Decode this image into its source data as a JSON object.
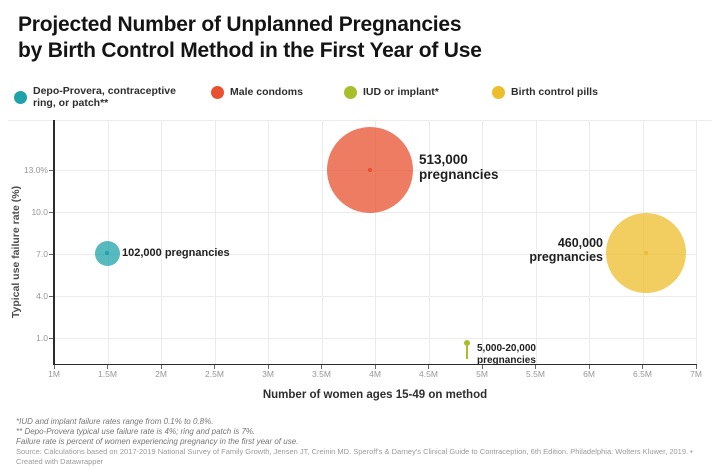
{
  "title": {
    "line1": "Projected Number of Unplanned Pregnancies",
    "line2": "by Birth Control Method in the First Year of Use"
  },
  "legend": {
    "items": [
      {
        "label_line1": "Depo-Provera, contraceptive",
        "label_line2": "ring, or patch**",
        "color": "#1FA3A9"
      },
      {
        "label_line1": "Male condoms",
        "label_line2": "",
        "color": "#E8502F"
      },
      {
        "label_line1": "IUD or implant*",
        "label_line2": "",
        "color": "#A9BE2B"
      },
      {
        "label_line1": "Birth control pills",
        "label_line2": "",
        "color": "#EDBE2C"
      }
    ]
  },
  "chart": {
    "y_axis_label": "Typical use failure rate (%)",
    "x_axis_label": "Number of women ages 15-49 on method",
    "y_ticks": [
      "13.0%",
      "10.0",
      "7.0",
      "4.0",
      "1.0"
    ],
    "x_ticks": [
      "1M",
      "1.5M",
      "2M",
      "2.5M",
      "3M",
      "3.5M",
      "4M",
      "4.5M",
      "5M",
      "5.5M",
      "6M",
      "6.5M",
      "7M"
    ]
  },
  "annotations": {
    "condoms": {
      "line1": "513,000",
      "line2": "pregnancies"
    },
    "pills": {
      "line1": "460,000",
      "line2": "pregnancies"
    },
    "depo": {
      "line1": "102,000 pregnancies"
    },
    "iud": {
      "line1": "5,000-20,000",
      "line2": "pregnancies"
    }
  },
  "bubbles": {
    "depo_fill": "rgba(31,163,169,0.75)",
    "condoms_fill": "rgba(232,80,47,0.75)",
    "pills_fill": "rgba(237,190,44,0.75)",
    "iud_fill": "#A9BE2B"
  },
  "footnotes": {
    "fn1": "*IUD and implant failure rates range from 0.1% to 0.8%.",
    "fn2": "** Depo-Provera typical use failure rate is 4%; ring and patch is 7%.",
    "fn3": "Failure rate is percent of women experiencing pregnancy in the first year of use."
  },
  "source": "Source: Calculations based on 2017-2019 National Survey of Family Growth, Jensen JT, Creinin MD. Speroff's & Darney's Clinical Guide to Contraception, 6th Edition. Philadelphia: Wolters Kluwer, 2019. • Created with Datawrapper",
  "chart_data": {
    "type": "scatter",
    "subtype": "bubble",
    "title": "Projected Number of Unplanned Pregnancies by Birth Control Method in the First Year of Use",
    "xlabel": "Number of women ages 15-49 on method",
    "ylabel": "Typical use failure rate (%)",
    "x_range_millions": [
      1,
      7
    ],
    "y_range_pct": [
      0,
      16
    ],
    "grid": true,
    "legend_position": "top",
    "series": [
      {
        "name": "Depo-Provera, contraceptive ring, or patch**",
        "women_on_method_millions": 1.5,
        "typical_use_failure_rate_pct": 7.0,
        "projected_pregnancies": 102000,
        "label": "102,000 pregnancies",
        "color": "#1FA3A9"
      },
      {
        "name": "Male condoms",
        "women_on_method_millions": 3.95,
        "typical_use_failure_rate_pct": 13.0,
        "projected_pregnancies": 513000,
        "label": "513,000 pregnancies",
        "color": "#E8502F"
      },
      {
        "name": "IUD or implant*",
        "women_on_method_millions": 4.85,
        "typical_use_failure_rate_pct_range": [
          0.1,
          0.8
        ],
        "projected_pregnancies_range": [
          5000,
          20000
        ],
        "label": "5,000-20,000 pregnancies",
        "color": "#A9BE2B"
      },
      {
        "name": "Birth control pills",
        "women_on_method_millions": 6.55,
        "typical_use_failure_rate_pct": 7.0,
        "projected_pregnancies": 460000,
        "label": "460,000 pregnancies",
        "color": "#EDBE2C"
      }
    ],
    "footnotes": [
      "*IUD and implant failure rates range from 0.1% to 0.8%.",
      "** Depo-Provera typical use failure rate is 4%; ring and patch is 7%.",
      "Failure rate is percent of women experiencing pregnancy in the first year of use."
    ]
  }
}
